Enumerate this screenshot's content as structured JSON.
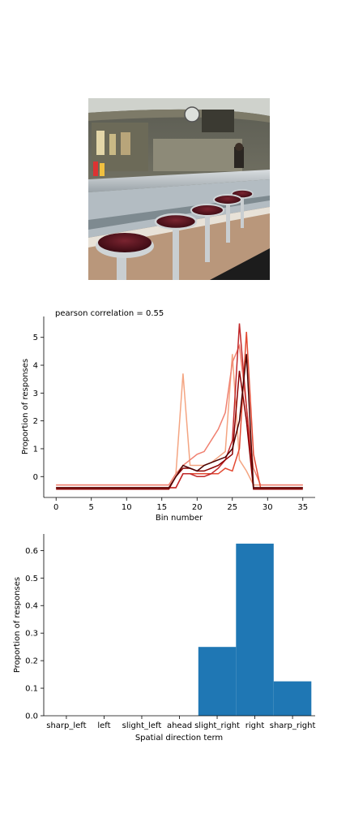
{
  "photo": {
    "subject": "diner-counter-with-bar-stools"
  },
  "chart_data": [
    {
      "type": "line",
      "title": "pearson correlation = 0.55",
      "xlabel": "Bin number",
      "ylabel": "Proportion of responses",
      "xlim": [
        -1.75,
        36.75
      ],
      "ylim": [
        -0.75,
        5.75
      ],
      "xticks": [
        0,
        5,
        10,
        15,
        20,
        25,
        30,
        35
      ],
      "yticks": [
        0,
        1,
        2,
        3,
        4,
        5
      ],
      "grid": false,
      "series": [
        {
          "color": "#f4a582",
          "x": [
            0,
            16,
            17,
            18,
            19,
            20,
            21,
            22,
            23,
            24,
            25,
            26,
            27,
            28,
            29,
            35
          ],
          "y": [
            -0.3,
            -0.3,
            0.1,
            3.7,
            0.4,
            0.4,
            0.4,
            0.5,
            0.7,
            0.9,
            4.4,
            0.6,
            0.2,
            -0.3,
            -0.3,
            -0.3
          ]
        },
        {
          "color": "#f08070",
          "x": [
            0,
            16,
            17,
            18,
            19,
            20,
            21,
            22,
            23,
            24,
            25,
            26,
            27,
            28,
            29,
            35
          ],
          "y": [
            -0.3,
            -0.3,
            0.1,
            0.4,
            0.6,
            0.8,
            0.9,
            1.3,
            1.7,
            2.3,
            4.1,
            4.7,
            2.5,
            0.3,
            -0.3,
            -0.3
          ]
        },
        {
          "color": "#e34a33",
          "x": [
            0,
            16,
            17,
            18,
            19,
            20,
            21,
            22,
            23,
            24,
            25,
            26,
            27,
            28,
            29,
            35
          ],
          "y": [
            -0.4,
            -0.4,
            -0.4,
            0.1,
            0.1,
            0.1,
            0.1,
            0.1,
            0.1,
            0.3,
            0.2,
            1.0,
            5.2,
            0.8,
            -0.4,
            -0.4
          ]
        },
        {
          "color": "#c0282a",
          "x": [
            0,
            16,
            17,
            18,
            19,
            20,
            21,
            22,
            23,
            24,
            25,
            26,
            27,
            28,
            29,
            35
          ],
          "y": [
            -0.4,
            -0.4,
            -0.4,
            0.1,
            0.1,
            0.0,
            0.0,
            0.1,
            0.3,
            0.6,
            1.3,
            5.5,
            2.5,
            -0.4,
            -0.4,
            -0.4
          ]
        },
        {
          "color": "#8b0000",
          "x": [
            0,
            16,
            17,
            18,
            19,
            20,
            21,
            22,
            23,
            24,
            25,
            26,
            27,
            28,
            29,
            35
          ],
          "y": [
            -0.45,
            -0.45,
            0.0,
            0.3,
            0.3,
            0.2,
            0.2,
            0.3,
            0.4,
            0.6,
            0.8,
            3.8,
            2.0,
            -0.45,
            -0.45,
            -0.45
          ]
        },
        {
          "color": "#4a0000",
          "x": [
            0,
            16,
            17,
            18,
            19,
            20,
            21,
            22,
            23,
            24,
            25,
            26,
            27,
            28,
            29,
            35
          ],
          "y": [
            -0.4,
            -0.4,
            0.0,
            0.4,
            0.3,
            0.2,
            0.4,
            0.5,
            0.6,
            0.7,
            1.0,
            2.0,
            4.4,
            -0.4,
            -0.4,
            -0.4
          ]
        }
      ]
    },
    {
      "type": "bar",
      "xlabel": "Spatial direction term",
      "ylabel": "Proportion of responses",
      "categories": [
        "sharp_left",
        "left",
        "slight_left",
        "ahead",
        "slight_right",
        "right",
        "sharp_right"
      ],
      "values": [
        0.0,
        0.0,
        0.0,
        0.0,
        0.25,
        0.625,
        0.125
      ],
      "ylim": [
        0.0,
        0.66
      ],
      "yticks": [
        "0.0",
        "0.1",
        "0.2",
        "0.3",
        "0.4",
        "0.5",
        "0.6"
      ],
      "bar_color": "#1f77b4",
      "grid": false
    }
  ]
}
